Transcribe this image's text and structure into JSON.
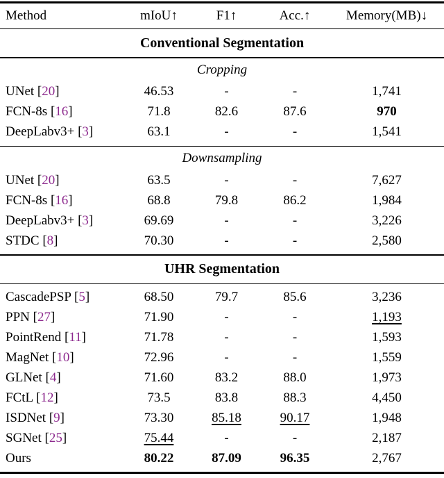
{
  "colors": {
    "citation": "#8d2a8e",
    "text": "#000000",
    "rule": "#000000",
    "background": "#ffffff"
  },
  "table": {
    "columns": [
      {
        "key": "method",
        "label": "Method"
      },
      {
        "key": "miou",
        "label": "mIoU↑"
      },
      {
        "key": "f1",
        "label": "F1↑"
      },
      {
        "key": "acc",
        "label": "Acc.↑"
      },
      {
        "key": "memory",
        "label": "Memory(MB)↓"
      }
    ],
    "sections": [
      {
        "header": "Conventional Segmentation",
        "subsections": [
          {
            "label": "Cropping",
            "rows": [
              {
                "method": "UNet",
                "citation": "20",
                "cells": [
                  {
                    "text": "46.53"
                  },
                  {
                    "text": "-"
                  },
                  {
                    "text": "-"
                  },
                  {
                    "text": "1,741"
                  }
                ]
              },
              {
                "method": "FCN-8s",
                "citation": "16",
                "cells": [
                  {
                    "text": "71.8"
                  },
                  {
                    "text": "82.6"
                  },
                  {
                    "text": "87.6"
                  },
                  {
                    "text": "970",
                    "bold": true
                  }
                ]
              },
              {
                "method": "DeepLabv3+",
                "citation": "3",
                "cells": [
                  {
                    "text": "63.1"
                  },
                  {
                    "text": "-"
                  },
                  {
                    "text": "-"
                  },
                  {
                    "text": "1,541"
                  }
                ]
              }
            ]
          },
          {
            "label": "Downsampling",
            "rows": [
              {
                "method": "UNet",
                "citation": "20",
                "cells": [
                  {
                    "text": "63.5"
                  },
                  {
                    "text": "-"
                  },
                  {
                    "text": "-"
                  },
                  {
                    "text": "7,627"
                  }
                ]
              },
              {
                "method": "FCN-8s",
                "citation": "16",
                "cells": [
                  {
                    "text": "68.8"
                  },
                  {
                    "text": "79.8"
                  },
                  {
                    "text": "86.2"
                  },
                  {
                    "text": "1,984"
                  }
                ]
              },
              {
                "method": "DeepLabv3+",
                "citation": "3",
                "cells": [
                  {
                    "text": "69.69"
                  },
                  {
                    "text": "-"
                  },
                  {
                    "text": "-"
                  },
                  {
                    "text": "3,226"
                  }
                ]
              },
              {
                "method": "STDC",
                "citation": "8",
                "cells": [
                  {
                    "text": "70.30"
                  },
                  {
                    "text": "-"
                  },
                  {
                    "text": "-"
                  },
                  {
                    "text": "2,580"
                  }
                ]
              }
            ]
          }
        ]
      },
      {
        "header": "UHR Segmentation",
        "subsections": [
          {
            "label": null,
            "rows": [
              {
                "method": "CascadePSP",
                "citation": "5",
                "cells": [
                  {
                    "text": "68.50"
                  },
                  {
                    "text": "79.7"
                  },
                  {
                    "text": "85.6"
                  },
                  {
                    "text": "3,236"
                  }
                ]
              },
              {
                "method": "PPN",
                "citation": "27",
                "cells": [
                  {
                    "text": "71.90"
                  },
                  {
                    "text": "-"
                  },
                  {
                    "text": "-"
                  },
                  {
                    "text": "1,193",
                    "underline": true
                  }
                ]
              },
              {
                "method": "PointRend",
                "citation": "11",
                "cells": [
                  {
                    "text": "71.78"
                  },
                  {
                    "text": "-"
                  },
                  {
                    "text": "-"
                  },
                  {
                    "text": "1,593"
                  }
                ]
              },
              {
                "method": "MagNet",
                "citation": "10",
                "cells": [
                  {
                    "text": "72.96"
                  },
                  {
                    "text": "-"
                  },
                  {
                    "text": "-"
                  },
                  {
                    "text": "1,559"
                  }
                ]
              },
              {
                "method": "GLNet",
                "citation": "4",
                "cells": [
                  {
                    "text": "71.60"
                  },
                  {
                    "text": "83.2"
                  },
                  {
                    "text": "88.0"
                  },
                  {
                    "text": "1,973"
                  }
                ]
              },
              {
                "method": "FCtL",
                "citation": "12",
                "cells": [
                  {
                    "text": "73.5"
                  },
                  {
                    "text": "83.8"
                  },
                  {
                    "text": "88.3"
                  },
                  {
                    "text": "4,450"
                  }
                ]
              },
              {
                "method": "ISDNet",
                "citation": "9",
                "cells": [
                  {
                    "text": "73.30"
                  },
                  {
                    "text": "85.18",
                    "underline": true
                  },
                  {
                    "text": "90.17",
                    "underline": true
                  },
                  {
                    "text": "1,948"
                  }
                ]
              },
              {
                "method": "SGNet",
                "citation": "25",
                "cells": [
                  {
                    "text": "75.44",
                    "underline": true
                  },
                  {
                    "text": "-"
                  },
                  {
                    "text": "-"
                  },
                  {
                    "text": "2,187"
                  }
                ]
              },
              {
                "method": "Ours",
                "citation": null,
                "cells": [
                  {
                    "text": "80.22",
                    "bold": true
                  },
                  {
                    "text": "87.09",
                    "bold": true
                  },
                  {
                    "text": "96.35",
                    "bold": true
                  },
                  {
                    "text": "2,767"
                  }
                ]
              }
            ]
          }
        ]
      }
    ]
  }
}
